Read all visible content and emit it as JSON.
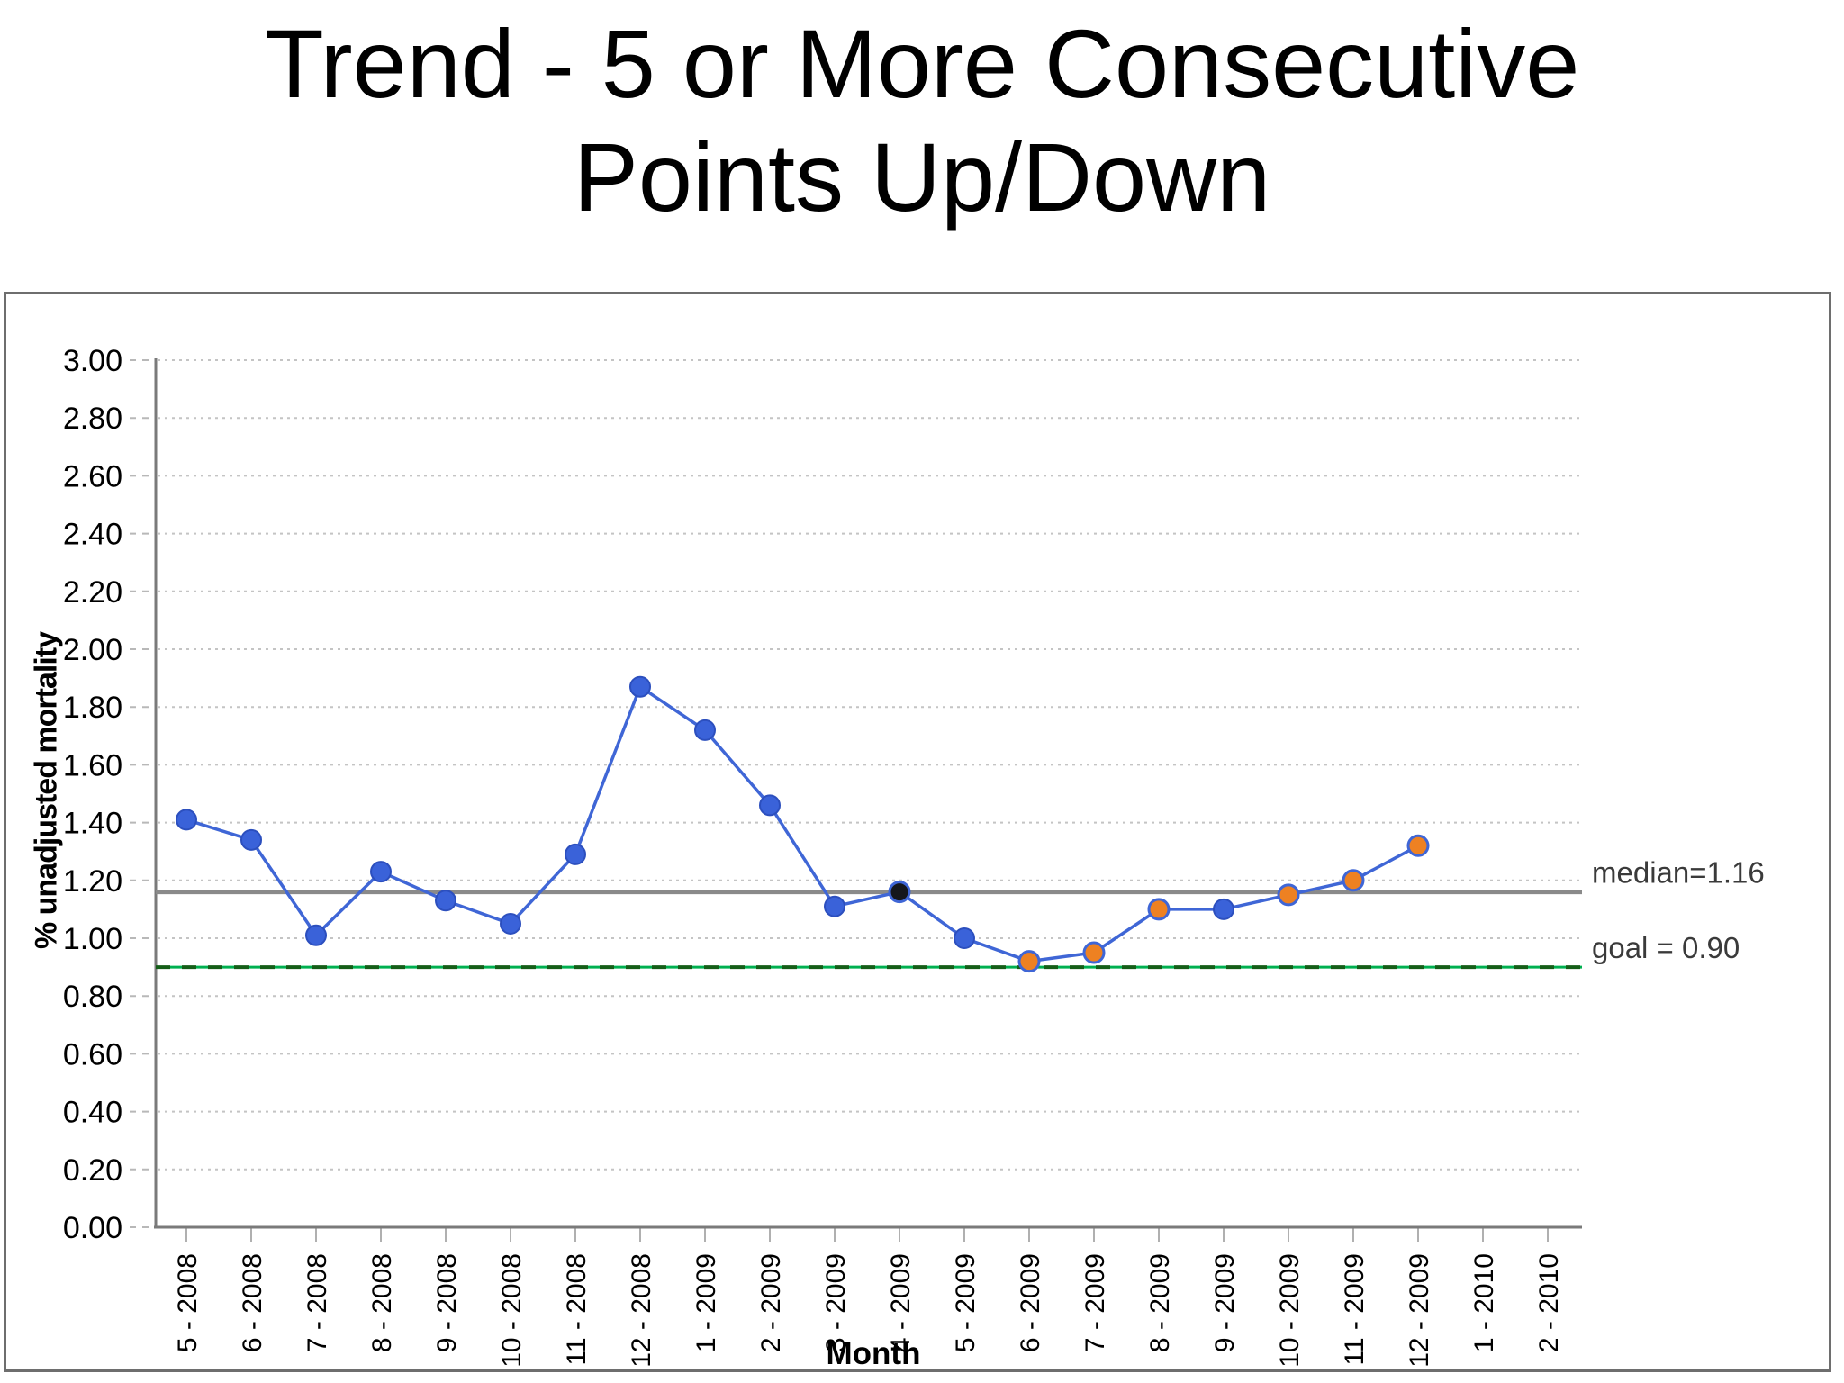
{
  "title": {
    "line1": "Trend - 5 or More Consecutive",
    "line2": "Points Up/Down"
  },
  "chart_data": {
    "type": "line",
    "title": "Trend - 5 or More Consecutive Points Up/Down",
    "xlabel": "Month",
    "ylabel": "% unadjusted mortality",
    "ylim": [
      0.0,
      3.0
    ],
    "ytick_step": 0.2,
    "grid": true,
    "legend_position": "none",
    "yticks": [
      "0.00",
      "0.20",
      "0.40",
      "0.60",
      "0.80",
      "1.00",
      "1.20",
      "1.40",
      "1.60",
      "1.80",
      "2.00",
      "2.20",
      "2.40",
      "2.60",
      "2.80",
      "3.00"
    ],
    "categories": [
      "5 - 2008",
      "6 - 2008",
      "7 - 2008",
      "8 - 2008",
      "9 - 2008",
      "10 - 2008",
      "11 - 2008",
      "12 - 2008",
      "1 - 2009",
      "2 - 2009",
      "3 - 2009",
      "4 - 2009",
      "5 - 2009",
      "6 - 2009",
      "7 - 2009",
      "8 - 2009",
      "9 - 2009",
      "10 - 2009",
      "11 - 2009",
      "12 - 2009",
      "1 - 2010",
      "2 - 2010"
    ],
    "series": [
      {
        "name": "% unadjusted mortality",
        "values": [
          1.41,
          1.34,
          1.01,
          1.23,
          1.13,
          1.05,
          1.29,
          1.87,
          1.72,
          1.46,
          1.11,
          1.16,
          1.0,
          0.92,
          0.95,
          1.1,
          1.1,
          1.15,
          1.2,
          1.32,
          null,
          null
        ],
        "point_colors": [
          "blue",
          "blue",
          "blue",
          "blue",
          "blue",
          "blue",
          "blue",
          "blue",
          "blue",
          "blue",
          "blue",
          "black",
          "blue",
          "orange",
          "orange",
          "orange",
          "blue",
          "orange",
          "orange",
          "orange",
          null,
          null
        ]
      }
    ],
    "reference_lines": [
      {
        "label": "median=1.16",
        "value": 1.16,
        "style": "solid",
        "color": "#8a8a8a"
      },
      {
        "label": "goal = 0.90",
        "value": 0.9,
        "style": "dashed",
        "color": "#00b050"
      }
    ],
    "colors": {
      "blue": "#3a62d9",
      "orange": "#ee8122",
      "black": "#15171c",
      "line": "#3f66d6",
      "axis": "#7a7a7a",
      "gridline": "#c4c4c4",
      "goal_dash": "#155e18",
      "ref_label": "#3a3a3a"
    }
  }
}
